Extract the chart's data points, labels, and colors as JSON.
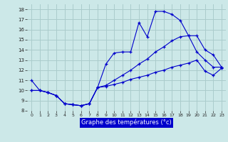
{
  "title": "Graphe des températures (°c)",
  "bg_color": "#cce8e8",
  "grid_color": "#aacccc",
  "line_color": "#0000cc",
  "xlim": [
    -0.5,
    23.5
  ],
  "ylim": [
    8,
    18.5
  ],
  "xticks": [
    0,
    1,
    2,
    3,
    4,
    5,
    6,
    7,
    8,
    9,
    10,
    11,
    12,
    13,
    14,
    15,
    16,
    17,
    18,
    19,
    20,
    21,
    22,
    23
  ],
  "yticks": [
    8,
    9,
    10,
    11,
    12,
    13,
    14,
    15,
    16,
    17,
    18
  ],
  "s1_x": [
    0,
    1,
    2,
    3,
    4,
    5,
    6,
    7,
    8,
    9,
    10,
    11,
    12,
    13,
    14,
    15,
    16,
    17,
    18,
    19,
    20,
    21,
    22,
    23
  ],
  "s1_y": [
    11,
    10,
    9.8,
    9.5,
    8.7,
    8.6,
    8.5,
    8.7,
    10.3,
    12.6,
    13.7,
    13.8,
    13.8,
    16.7,
    15.3,
    17.8,
    17.8,
    17.5,
    16.9,
    15.4,
    13.8,
    13.0,
    12.3,
    12.3
  ],
  "s2_x": [
    0,
    1,
    2,
    3,
    4,
    5,
    6,
    7,
    8,
    9,
    10,
    11,
    12,
    13,
    14,
    15,
    16,
    17,
    18,
    19,
    20,
    21,
    22,
    23
  ],
  "s2_y": [
    10,
    10,
    9.8,
    9.5,
    8.7,
    8.6,
    8.5,
    8.7,
    10.3,
    10.4,
    10.6,
    10.8,
    11.1,
    11.3,
    11.5,
    11.8,
    12.0,
    12.3,
    12.5,
    12.7,
    13.0,
    11.9,
    11.5,
    12.2
  ],
  "s3_x": [
    0,
    1,
    2,
    3,
    4,
    5,
    6,
    7,
    8,
    9,
    10,
    11,
    12,
    13,
    14,
    15,
    16,
    17,
    18,
    19,
    20,
    21,
    22,
    23
  ],
  "s3_y": [
    10,
    10,
    9.8,
    9.5,
    8.7,
    8.6,
    8.5,
    8.7,
    10.3,
    10.5,
    11.0,
    11.5,
    12.0,
    12.6,
    13.1,
    13.8,
    14.3,
    14.9,
    15.3,
    15.4,
    15.4,
    14.0,
    13.5,
    12.3
  ]
}
